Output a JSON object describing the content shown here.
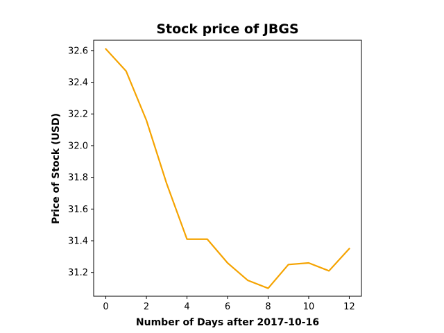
{
  "chart_data": {
    "type": "line",
    "title": "Stock price of JBGS",
    "xlabel": "Number of Days after 2017-10-16",
    "ylabel": "Price of Stock (USD)",
    "x": [
      0,
      1,
      2,
      3,
      4,
      5,
      6,
      7,
      8,
      9,
      10,
      11,
      12
    ],
    "series": [
      {
        "values": [
          32.61,
          32.47,
          32.16,
          31.76,
          31.41,
          31.41,
          31.26,
          31.15,
          31.1,
          31.25,
          31.26,
          31.21,
          31.35
        ],
        "color": "#f5a300"
      }
    ],
    "xlim": [
      -0.6,
      12.6
    ],
    "ylim": [
      31.05,
      32.665
    ],
    "xticks": [
      0,
      2,
      4,
      6,
      8,
      10,
      12
    ],
    "yticks": [
      31.2,
      31.4,
      31.6,
      31.8,
      32.0,
      32.2,
      32.4,
      32.6
    ],
    "xtick_labels": [
      "0",
      "2",
      "4",
      "6",
      "8",
      "10",
      "12"
    ],
    "ytick_labels": [
      "31.2",
      "31.4",
      "31.6",
      "31.8",
      "32.0",
      "32.2",
      "32.4",
      "32.6"
    ],
    "grid": false,
    "legend": "none"
  }
}
